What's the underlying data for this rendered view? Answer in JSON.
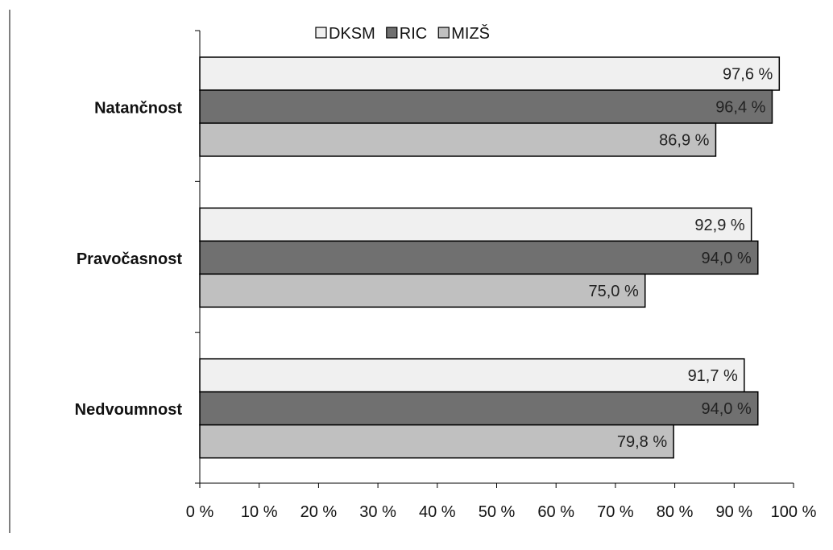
{
  "chart_data": {
    "type": "bar",
    "orientation": "horizontal",
    "categories": [
      "Natančnost",
      "Pravočasnost",
      "Nedvoumnost"
    ],
    "series": [
      {
        "name": "DKSM",
        "color": "#f0f0f0",
        "values": [
          97.6,
          92.9,
          91.7
        ],
        "labels": [
          "97,6 %",
          "92,9 %",
          "91,7 %"
        ]
      },
      {
        "name": "RIC",
        "color": "#707070",
        "values": [
          96.4,
          94.0,
          94.0
        ],
        "labels": [
          "96,4 %",
          "94,0 %",
          "94,0 %"
        ]
      },
      {
        "name": "MIZŠ",
        "color": "#c0c0c0",
        "values": [
          86.9,
          75.0,
          79.8
        ],
        "labels": [
          "86,9 %",
          "75,0 %",
          "79,8 %"
        ]
      }
    ],
    "xlim": [
      0,
      100
    ],
    "xticks": [
      0,
      10,
      20,
      30,
      40,
      50,
      60,
      70,
      80,
      90,
      100
    ],
    "xtick_labels": [
      "0 %",
      "10 %",
      "20 %",
      "30 %",
      "40 %",
      "50 %",
      "60 %",
      "70 %",
      "80 %",
      "90 %",
      "100 %"
    ],
    "grid": false,
    "legend_position": "top"
  }
}
